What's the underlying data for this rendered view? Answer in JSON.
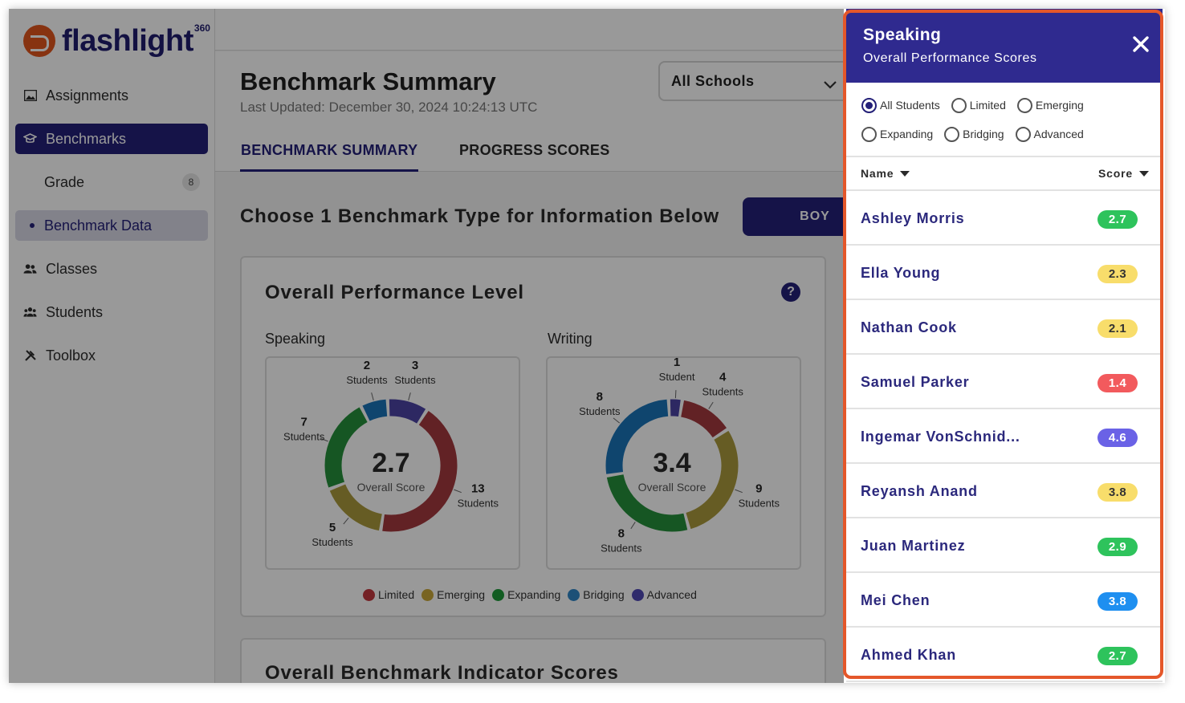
{
  "brand": {
    "name": "flashlight",
    "superscript": "360",
    "accent": "#e2551d",
    "primary": "#242078"
  },
  "sidebar": {
    "items": [
      {
        "label": "Assignments",
        "icon": "image-icon"
      },
      {
        "label": "Benchmarks",
        "icon": "graduation-cap-icon",
        "active": true
      },
      {
        "label": "Grade",
        "badge": "8"
      },
      {
        "label": "Benchmark Data",
        "active_sub": true
      },
      {
        "label": "Classes",
        "icon": "users-icon"
      },
      {
        "label": "Students",
        "icon": "user-group-icon"
      },
      {
        "label": "Toolbox",
        "icon": "tools-icon"
      }
    ]
  },
  "header": {
    "title": "Benchmark Summary",
    "last_updated": "Last Updated: December 30, 2024 10:24:13 UTC",
    "school_select": "All Schools",
    "tabs": [
      {
        "label": "BENCHMARK SUMMARY",
        "active": true
      },
      {
        "label": "PROGRESS SCORES",
        "active": false
      }
    ]
  },
  "main": {
    "choose_text": "Choose 1 Benchmark Type for Information Below",
    "boy_button": "BOY",
    "card_title": "Overall Performance Level",
    "card2_title": "Overall Benchmark Indicator Scores"
  },
  "chart_data": [
    {
      "type": "pie",
      "title": "Speaking",
      "center_value": "2.7",
      "center_label": "Overall Score",
      "unit_label": "Students",
      "slices": [
        {
          "name": "Advanced",
          "value": 3,
          "label": "Students",
          "color": "#4b43a4"
        },
        {
          "name": "Limited",
          "value": 13,
          "label": "Students",
          "color": "#a33a3f"
        },
        {
          "name": "Emerging",
          "value": 5,
          "label": "Students",
          "color": "#ab9a3d"
        },
        {
          "name": "Expanding",
          "value": 7,
          "label": "Students",
          "color": "#25903b"
        },
        {
          "name": "Bridging",
          "value": 2,
          "label": "Students",
          "color": "#1a73b8"
        }
      ]
    },
    {
      "type": "pie",
      "title": "Writing",
      "center_value": "3.4",
      "center_label": "Overall Score",
      "slices": [
        {
          "name": "Advanced",
          "value": 1,
          "label": "Student",
          "color": "#4b43a4"
        },
        {
          "name": "Limited",
          "value": 4,
          "label": "Students",
          "color": "#a33a3f"
        },
        {
          "name": "Emerging",
          "value": 9,
          "label": "Students",
          "color": "#ab9a3d"
        },
        {
          "name": "Expanding",
          "value": 8,
          "label": "Students",
          "color": "#25903b"
        },
        {
          "name": "Bridging",
          "value": 8,
          "label": "Students",
          "color": "#1a73b8"
        }
      ]
    }
  ],
  "legend": [
    {
      "label": "Limited",
      "color": "#c2383e"
    },
    {
      "label": "Emerging",
      "color": "#c9a73a"
    },
    {
      "label": "Expanding",
      "color": "#1f9a3a"
    },
    {
      "label": "Bridging",
      "color": "#2f86c6"
    },
    {
      "label": "Advanced",
      "color": "#4f48b5"
    }
  ],
  "panel": {
    "title": "Speaking",
    "subtitle": "Overall Performance Scores",
    "filters": [
      {
        "label": "All Students",
        "checked": true
      },
      {
        "label": "Limited",
        "checked": false
      },
      {
        "label": "Emerging",
        "checked": false
      },
      {
        "label": "Expanding",
        "checked": false
      },
      {
        "label": "Bridging",
        "checked": false
      },
      {
        "label": "Advanced",
        "checked": false
      }
    ],
    "columns": {
      "name": "Name",
      "score": "Score"
    },
    "students": [
      {
        "name": "Ashley Morris",
        "score": "2.7",
        "level": "Expanding"
      },
      {
        "name": "Ella Young",
        "score": "2.3",
        "level": "Emerging"
      },
      {
        "name": "Nathan Cook",
        "score": "2.1",
        "level": "Emerging"
      },
      {
        "name": "Samuel Parker",
        "score": "1.4",
        "level": "Limited"
      },
      {
        "name": "Ingemar VonSchnid...",
        "score": "4.6",
        "level": "Advanced"
      },
      {
        "name": "Reyansh Anand",
        "score": "3.8",
        "level": "Emerging"
      },
      {
        "name": "Juan Martinez",
        "score": "2.9",
        "level": "Expanding"
      },
      {
        "name": "Mei Chen",
        "score": "3.8",
        "level": "Bridging"
      },
      {
        "name": "Ahmed Khan",
        "score": "2.7",
        "level": "Expanding"
      }
    ],
    "level_colors": {
      "Limited": {
        "bg": "#f25a5d",
        "fg": "#ffffff"
      },
      "Emerging": {
        "bg": "#f8dd6b",
        "fg": "#333333"
      },
      "Expanding": {
        "bg": "#2ec35c",
        "fg": "#ffffff"
      },
      "Bridging": {
        "bg": "#1e8ff0",
        "fg": "#ffffff"
      },
      "Advanced": {
        "bg": "#6a62e6",
        "fg": "#ffffff"
      }
    },
    "highlight_color": "#e4572a"
  }
}
